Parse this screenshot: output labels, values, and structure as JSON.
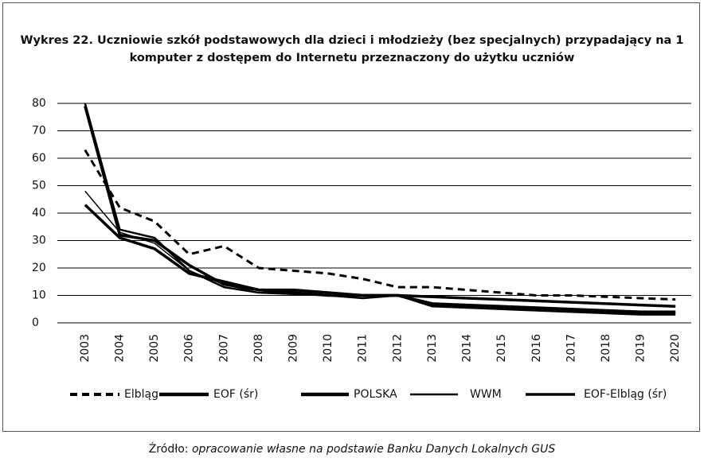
{
  "chart_data": {
    "type": "line",
    "title": "Wykres 22. Uczniowie szkół podstawowych dla dzieci i młodzieży (bez specjalnych) przypadający na 1 komputer z dostępem do Internetu przeznaczony do użytku uczniów",
    "source_label": "Źródło:",
    "source": "opracowanie własne na podstawie Banku Danych Lokalnych GUS",
    "categories": [
      "2003",
      "2004",
      "2005",
      "2006",
      "2007",
      "2008",
      "2009",
      "2010",
      "2011",
      "2012",
      "2013",
      "2014",
      "2015",
      "2016",
      "2017",
      "2018",
      "2019",
      "2020"
    ],
    "series": [
      {
        "name": "Elbląg",
        "color": "#000000",
        "dashed": true,
        "width": 3,
        "values": [
          63,
          42,
          37,
          25,
          28,
          20,
          19,
          18,
          16,
          13,
          13,
          12,
          11,
          10,
          10,
          9.5,
          9,
          8.5
        ]
      },
      {
        "name": "EOF (śr)",
        "color": "#000000",
        "dashed": false,
        "width": 3.5,
        "values": [
          79,
          32,
          30,
          21,
          14,
          12,
          12,
          11,
          10,
          10,
          9.5,
          9,
          8.5,
          8,
          7.5,
          7,
          6.5,
          6
        ]
      },
      {
        "name": "POLSKA",
        "color": "#000000",
        "dashed": false,
        "width": 3.5,
        "values": [
          43,
          31,
          27,
          18,
          15,
          12,
          11,
          10,
          10,
          10,
          7,
          6.5,
          6,
          5.5,
          5,
          4.5,
          4,
          4
        ]
      },
      {
        "name": "WWM",
        "color": "#000000",
        "dashed": false,
        "width": 1.5,
        "values": [
          48,
          33,
          29,
          19,
          14,
          11,
          11,
          10,
          9,
          10,
          6.5,
          6,
          5.5,
          5,
          4.5,
          4,
          3.5,
          3.5
        ]
      },
      {
        "name": "EOF-Elbląg (śr)",
        "color": "#000000",
        "dashed": false,
        "width": 2.5,
        "values": [
          80,
          34,
          31,
          19,
          13,
          11,
          10.5,
          10,
          9,
          10,
          6,
          5.5,
          5,
          4.5,
          4,
          3.5,
          3,
          3
        ]
      }
    ],
    "ylim": [
      0,
      80
    ],
    "yticks": [
      0,
      10,
      20,
      30,
      40,
      50,
      60,
      70,
      80
    ],
    "grid": true,
    "legend": "bottom"
  }
}
